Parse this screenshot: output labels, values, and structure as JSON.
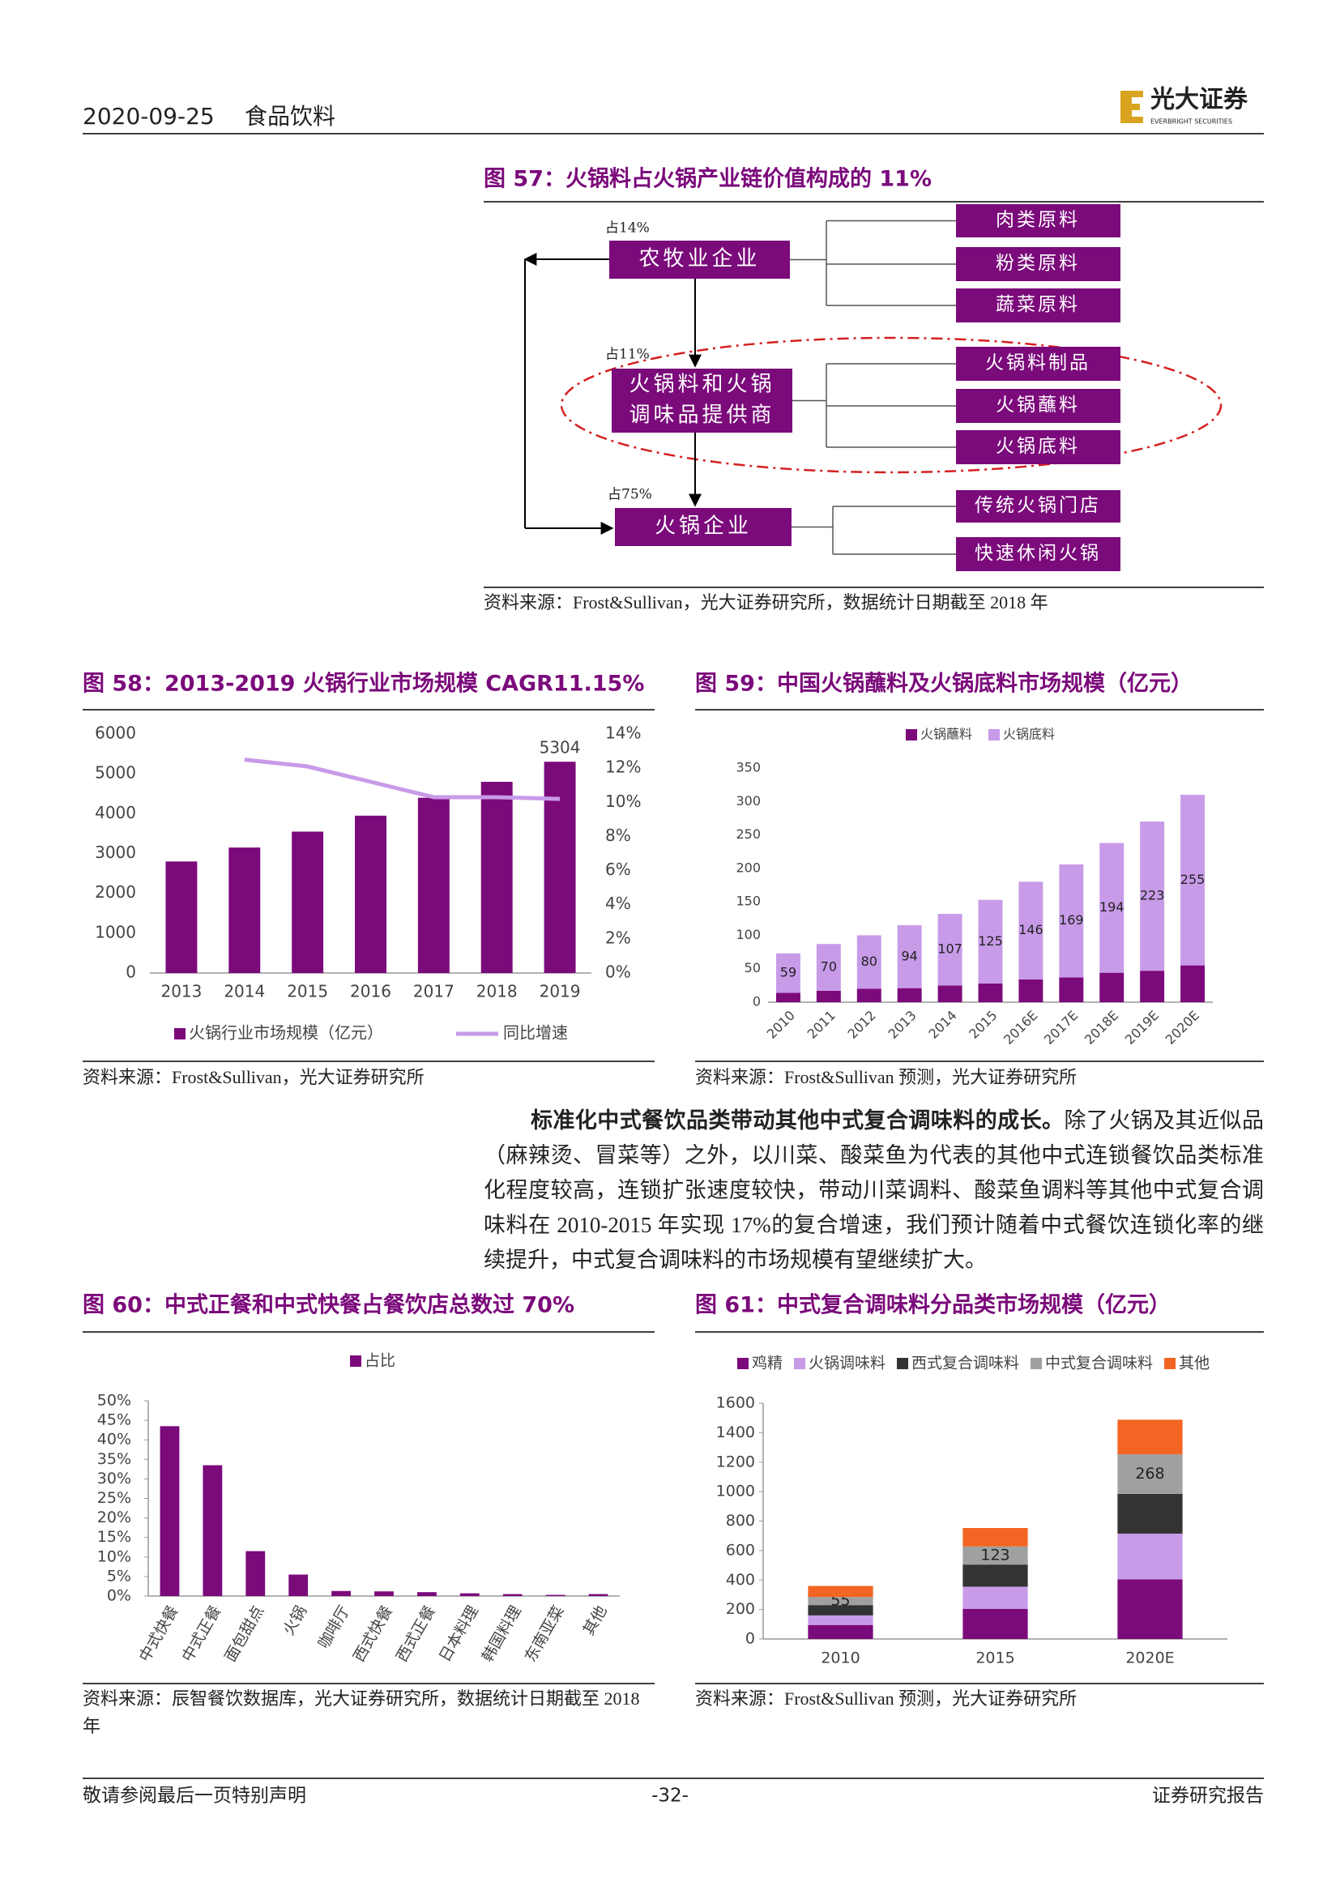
{
  "header": {
    "date": "2020-09-25",
    "sector": "食品饮料",
    "logo_name": "光大证券",
    "logo_en": "EVERBRIGHT SECURITIES"
  },
  "figure57": {
    "title": "图 57：火锅料占火锅产业链价值构成的 11%",
    "nodes": [
      {
        "label_lines": [
          "农牧业企业"
        ],
        "share": "占14%",
        "items": [
          "肉类原料",
          "粉类原料",
          "蔬菜原料"
        ]
      },
      {
        "label_lines": [
          "火锅料和火锅",
          "调味品提供商"
        ],
        "share": "占11%",
        "items": [
          "火锅料制品",
          "火锅蘸料",
          "火锅底料"
        ]
      },
      {
        "label_lines": [
          "火锅企业"
        ],
        "share": "占75%",
        "items": [
          "传统火锅门店",
          "快速休闲火锅"
        ]
      }
    ],
    "source": "资料来源：Frost&Sullivan，光大证券研究所，数据统计日期截至 2018 年"
  },
  "chart_data": [
    {
      "type": "bar",
      "title": "图 58：2013-2019 火锅行业市场规模 CAGR11.15%",
      "categories": [
        "2013",
        "2014",
        "2015",
        "2016",
        "2017",
        "2018",
        "2019"
      ],
      "series": [
        {
          "name": "火锅行业市场规模（亿元）",
          "color": "#7b0a7b",
          "values": [
            2800,
            3150,
            3550,
            3950,
            4400,
            4800,
            5304
          ],
          "value_labels": [
            null,
            null,
            null,
            null,
            null,
            null,
            "5304"
          ]
        },
        {
          "name": "同比增速",
          "color": "#c89be8",
          "type": "line",
          "axis": "y2",
          "values": [
            null,
            12.5,
            12.1,
            11.2,
            10.3,
            10.3,
            10.2
          ]
        }
      ],
      "ylim": [
        0,
        6000
      ],
      "yticks": [
        0,
        1000,
        2000,
        3000,
        4000,
        5000,
        6000
      ],
      "y2lim": [
        0,
        14
      ],
      "y2ticks": [
        {
          "value": 0,
          "label": "0%"
        },
        {
          "value": 2,
          "label": "2%"
        },
        {
          "value": 4,
          "label": "4%"
        },
        {
          "value": 6,
          "label": "6%"
        },
        {
          "value": 8,
          "label": "8%"
        },
        {
          "value": 10,
          "label": "10%"
        },
        {
          "value": 12,
          "label": "12%"
        },
        {
          "value": 14,
          "label": "14%"
        }
      ],
      "legend": "bottom",
      "source": "资料来源：Frost&Sullivan，光大证券研究所"
    },
    {
      "type": "stacked_bar",
      "title": "图 59：中国火锅蘸料及火锅底料市场规模（亿元）",
      "categories": [
        "2010",
        "2011",
        "2012",
        "2013",
        "2014",
        "2015",
        "2016E",
        "2017E",
        "2018E",
        "2019E",
        "2020E"
      ],
      "series": [
        {
          "name": "火锅蘸料",
          "color": "#7b0a7b",
          "values": [
            14,
            17,
            20,
            21,
            25,
            28,
            34,
            37,
            44,
            47,
            55
          ]
        },
        {
          "name": "火锅底料",
          "color": "#c89be8",
          "values": [
            59,
            70,
            80,
            94,
            107,
            125,
            146,
            169,
            194,
            223,
            255
          ],
          "show_values": true
        }
      ],
      "ylim": [
        0,
        350
      ],
      "yticks": [
        0,
        50,
        100,
        150,
        200,
        250,
        300,
        350
      ],
      "legend": "top",
      "source": "资料来源：Frost&Sullivan 预测，光大证券研究所"
    },
    {
      "type": "bar",
      "title": "图 60：中式正餐和中式快餐占餐饮店总数过 70%",
      "categories": [
        "中式快餐",
        "中式正餐",
        "面包甜点",
        "火锅",
        "咖啡厅",
        "西式快餐",
        "西式正餐",
        "日本料理",
        "韩国料理",
        "东南亚菜",
        "其他"
      ],
      "series": [
        {
          "name": "占比",
          "color": "#7b0a7b",
          "values": [
            43.5,
            33.5,
            11.5,
            5.5,
            1.3,
            1.2,
            1.0,
            0.7,
            0.5,
            0.3,
            0.5
          ]
        }
      ],
      "ylim": [
        0,
        50
      ],
      "yticks": [
        {
          "value": 0,
          "label": "0%"
        },
        {
          "value": 5,
          "label": "5%"
        },
        {
          "value": 10,
          "label": "10%"
        },
        {
          "value": 15,
          "label": "15%"
        },
        {
          "value": 20,
          "label": "20%"
        },
        {
          "value": 25,
          "label": "25%"
        },
        {
          "value": 30,
          "label": "30%"
        },
        {
          "value": 35,
          "label": "35%"
        },
        {
          "value": 40,
          "label": "40%"
        },
        {
          "value": 45,
          "label": "45%"
        },
        {
          "value": 50,
          "label": "50%"
        }
      ],
      "legend": "top",
      "source": "资料来源：辰智餐饮数据库，光大证券研究所，数据统计日期截至 2018 年"
    },
    {
      "type": "stacked_bar",
      "title": "图 61：中式复合调味料分品类市场规模（亿元）",
      "categories": [
        "2010",
        "2015",
        "2020E"
      ],
      "series": [
        {
          "name": "鸡精",
          "color": "#7b0a7b",
          "values": [
            95,
            205,
            405
          ]
        },
        {
          "name": "火锅调味料",
          "color": "#c89be8",
          "values": [
            65,
            150,
            310
          ]
        },
        {
          "name": "西式复合调味料",
          "color": "#333333",
          "values": [
            70,
            150,
            270
          ]
        },
        {
          "name": "中式复合调味料",
          "color": "#a0a0a0",
          "values": [
            55,
            123,
            268
          ],
          "show_values": true
        },
        {
          "name": "其他",
          "color": "#f26522",
          "values": [
            75,
            125,
            235
          ]
        }
      ],
      "ylim": [
        0,
        1600
      ],
      "yticks": [
        0,
        200,
        400,
        600,
        800,
        1000,
        1200,
        1400,
        1600
      ],
      "legend": "top",
      "source": "资料来源：Frost&Sullivan 预测，光大证券研究所"
    }
  ],
  "paragraph": {
    "lead": "标准化中式餐饮品类带动其他中式复合调味料的成长。",
    "body": "除了火锅及其近似品（麻辣烫、冒菜等）之外，以川菜、酸菜鱼为代表的其他中式连锁餐饮品类标准化程度较高，连锁扩张速度较快，带动川菜调料、酸菜鱼调料等其他中式复合调味料在 2010-2015 年实现 17%的复合增速，我们预计随着中式餐饮连锁化率的继续提升，中式复合调味料的市场规模有望继续扩大。"
  },
  "footer": {
    "left": "敬请参阅最后一页特别声明",
    "page": "-32-",
    "right": "证券研究报告"
  }
}
